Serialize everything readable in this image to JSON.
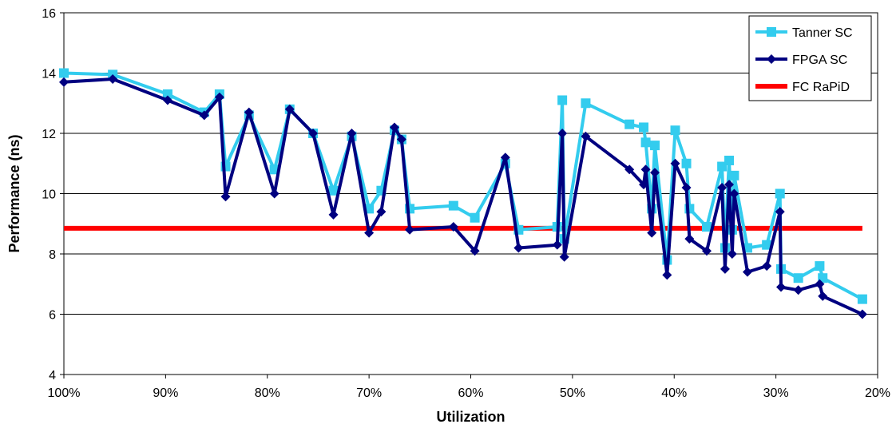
{
  "chart_data": {
    "type": "line",
    "title": "",
    "xlabel": "Utilization",
    "ylabel": "Performance (ns)",
    "xlim": [
      100,
      20
    ],
    "ylim": [
      4,
      16
    ],
    "x_reversed": true,
    "x_ticks": [
      100,
      90,
      80,
      70,
      60,
      50,
      40,
      30,
      20
    ],
    "x_tick_labels": [
      "100%",
      "90%",
      "80%",
      "70%",
      "60%",
      "50%",
      "40%",
      "30%",
      "20%"
    ],
    "y_ticks": [
      4,
      6,
      8,
      10,
      12,
      14,
      16
    ],
    "y_tick_labels": [
      "4",
      "6",
      "8",
      "10",
      "12",
      "14",
      "16"
    ],
    "grid": "horizontal",
    "legend_position": "top-right",
    "series": [
      {
        "name": "Tanner SC",
        "color": "#33ccee",
        "marker": "square",
        "x": [
          100,
          95.2,
          89.8,
          86.2,
          84.7,
          84.1,
          81.8,
          79.3,
          77.8,
          75.5,
          73.5,
          71.7,
          70,
          68.8,
          67.5,
          66.8,
          66,
          61.7,
          59.6,
          56.6,
          55.3,
          51.5,
          51,
          50.8,
          48.7,
          44.4,
          43,
          42.8,
          42.2,
          41.9,
          40.7,
          39.9,
          38.8,
          38.5,
          36.8,
          35.3,
          35,
          34.6,
          34.3,
          34.1,
          32.8,
          30.9,
          29.6,
          29.5,
          27.8,
          25.7,
          25.4,
          21.5
        ],
        "y": [
          14.0,
          13.95,
          13.3,
          12.7,
          13.3,
          10.9,
          12.6,
          10.8,
          12.8,
          12.0,
          10.1,
          11.9,
          9.5,
          10.1,
          12.1,
          11.8,
          9.5,
          9.6,
          9.2,
          11.0,
          8.8,
          8.9,
          13.1,
          8.5,
          13.0,
          12.3,
          12.2,
          11.7,
          9.5,
          11.6,
          7.8,
          12.1,
          11.0,
          9.5,
          8.9,
          10.9,
          8.2,
          11.1,
          8.8,
          10.6,
          8.2,
          8.3,
          10.0,
          7.5,
          7.2,
          7.6,
          7.2,
          6.5
        ]
      },
      {
        "name": "FPGA SC",
        "color": "#000080",
        "marker": "diamond",
        "x": [
          100,
          95.2,
          89.8,
          86.2,
          84.7,
          84.1,
          81.8,
          79.3,
          77.8,
          75.5,
          73.5,
          71.7,
          70,
          68.8,
          67.5,
          66.8,
          66,
          61.7,
          59.6,
          56.6,
          55.3,
          51.5,
          51,
          50.8,
          48.7,
          44.4,
          43,
          42.8,
          42.2,
          41.9,
          40.7,
          39.9,
          38.8,
          38.5,
          36.8,
          35.3,
          35,
          34.6,
          34.3,
          34.1,
          32.8,
          30.9,
          29.6,
          29.5,
          27.8,
          25.7,
          25.4,
          21.5
        ],
        "y": [
          13.7,
          13.8,
          13.1,
          12.6,
          13.2,
          9.9,
          12.7,
          10.0,
          12.8,
          12.0,
          9.3,
          12.0,
          8.7,
          9.4,
          12.2,
          11.8,
          8.8,
          8.9,
          8.1,
          11.2,
          8.2,
          8.3,
          12.0,
          7.9,
          11.9,
          10.8,
          10.3,
          10.8,
          8.7,
          10.7,
          7.3,
          11.0,
          10.2,
          8.5,
          8.1,
          10.2,
          7.5,
          10.3,
          8.0,
          10.0,
          7.4,
          7.6,
          9.4,
          6.9,
          6.8,
          7.0,
          6.6,
          6.0
        ]
      },
      {
        "name": "FC RaPiD",
        "color": "#ff0000",
        "marker": "none",
        "x": [
          100,
          21.5
        ],
        "y": [
          8.85,
          8.85
        ]
      }
    ]
  }
}
